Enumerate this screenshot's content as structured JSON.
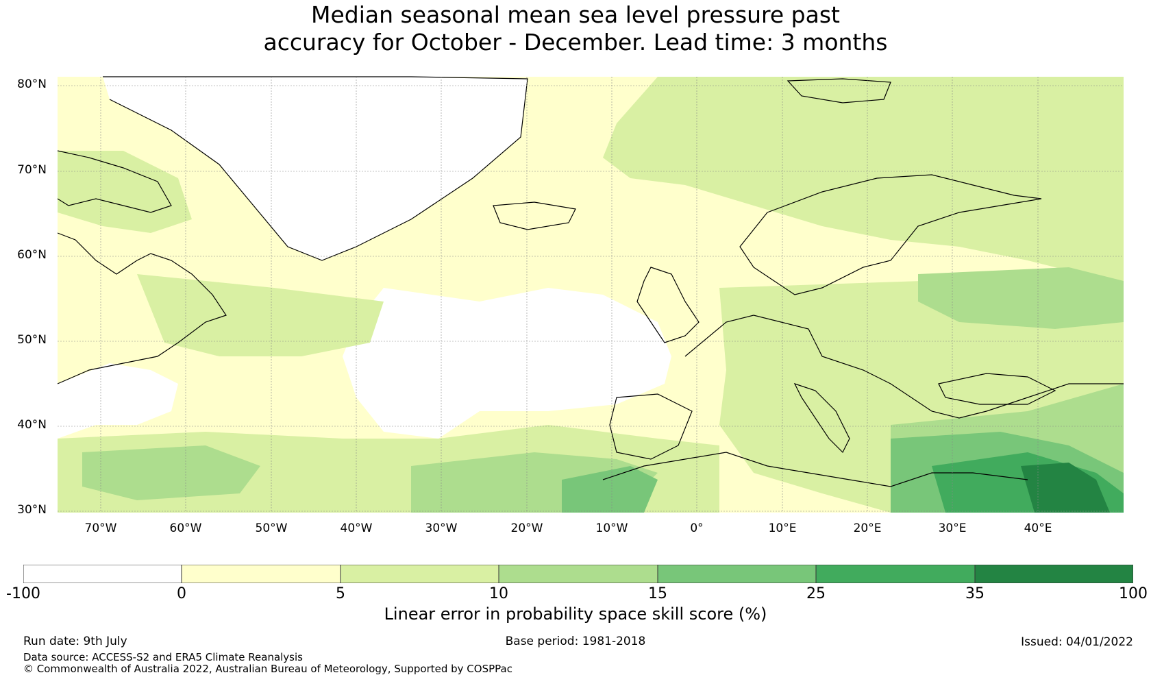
{
  "title": {
    "line1": "Median seasonal mean sea level pressure past",
    "line2": "accuracy for October - December. Lead time: 3 months"
  },
  "map": {
    "lat_labels": [
      "80°N",
      "70°N",
      "60°N",
      "50°N",
      "40°N",
      "30°N"
    ],
    "lon_labels": [
      "70°W",
      "60°W",
      "50°W",
      "40°W",
      "30°W",
      "20°W",
      "10°W",
      "0°",
      "10°E",
      "20°E",
      "30°E",
      "40°E"
    ],
    "lat_range": [
      30,
      80
    ],
    "lon_range": [
      -75,
      50
    ],
    "gridlines": true
  },
  "colorbar": {
    "ticks": [
      "-100",
      "0",
      "5",
      "10",
      "15",
      "25",
      "35",
      "100"
    ],
    "colors": [
      "#ffffff",
      "#ffffcc",
      "#d9f0a3",
      "#addd8e",
      "#78c679",
      "#41ab5d",
      "#238443"
    ],
    "label": "Linear error in probability space skill score (%)"
  },
  "footer": {
    "run_date": "Run date: 9th July",
    "base_period": "Base period: 1981-2018",
    "issued": "Issued: 04/01/2022",
    "data_source": "Data source: ACCESS-S2 and ERA5 Climate Reanalysis",
    "copyright": "© Commonwealth of Australia 2022, Australian Bureau of Meteorology, Supported by COSPPac"
  }
}
